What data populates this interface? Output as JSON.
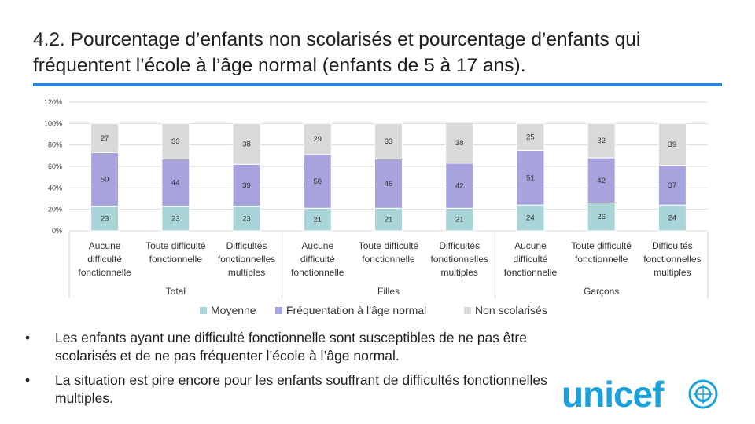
{
  "slide": {
    "title": "4.2. Pourcentage d’enfants non scolarisés et pourcentage d’enfants qui fréquentent l’école à l’âge normal (enfants de 5 à  17 ans).",
    "bullets": [
      "Les enfants ayant une difficulté fonctionnelle sont susceptibles de ne pas être scolarisés et de ne pas fréquenter l’école à l’âge normal.",
      "La situation est pire encore pour les enfants souffrant de difficultés fonctionnelles multiples."
    ],
    "bullet_glyph": "•",
    "logo_text": "unicef",
    "accent_color": "#2e86d6",
    "logo_color": "#1ca0dc"
  },
  "chart_data": {
    "type": "bar",
    "stacked": true,
    "title": "",
    "ylim": [
      0,
      120
    ],
    "yticks": [
      0,
      20,
      40,
      60,
      80,
      100,
      120
    ],
    "ytick_labels": [
      "0%",
      "20%",
      "40%",
      "60%",
      "80%",
      "100%",
      "120%"
    ],
    "grid": true,
    "categories": [
      [
        "Aucune",
        "difficulté",
        "fonctionnelle"
      ],
      [
        "Toute difficulté",
        "fonctionnelle"
      ],
      [
        "Difficultés",
        "fonctionnelles",
        "multiples"
      ],
      [
        "Aucune",
        "difficulté",
        "fonctionnelle"
      ],
      [
        "Toute difficulté",
        "fonctionnelle"
      ],
      [
        "Difficultés",
        "fonctionnelles",
        "multiples"
      ],
      [
        "Aucune",
        "difficulté",
        "fonctionnelle"
      ],
      [
        "Toute difficulté",
        "fonctionnelle"
      ],
      [
        "Difficultés",
        "fonctionnelles",
        "multiples"
      ]
    ],
    "groups": [
      {
        "name": "Total",
        "start": 0,
        "end": 2
      },
      {
        "name": "Filles",
        "start": 3,
        "end": 5
      },
      {
        "name": "Garçons",
        "start": 6,
        "end": 8
      }
    ],
    "series": [
      {
        "name": "Moyenne",
        "color": "#a9d4d8",
        "values": [
          23,
          23,
          23,
          21,
          21,
          21,
          24,
          26,
          24
        ]
      },
      {
        "name": "Fréquentation à l’âge normal",
        "color": "#a7a3dc",
        "values": [
          50,
          44,
          39,
          50,
          46,
          42,
          51,
          42,
          37
        ]
      },
      {
        "name": "Non scolarisés",
        "color": "#d9d9d9",
        "values": [
          27,
          33,
          38,
          29,
          33,
          38,
          25,
          32,
          39
        ]
      }
    ],
    "legend_position": "bottom"
  }
}
